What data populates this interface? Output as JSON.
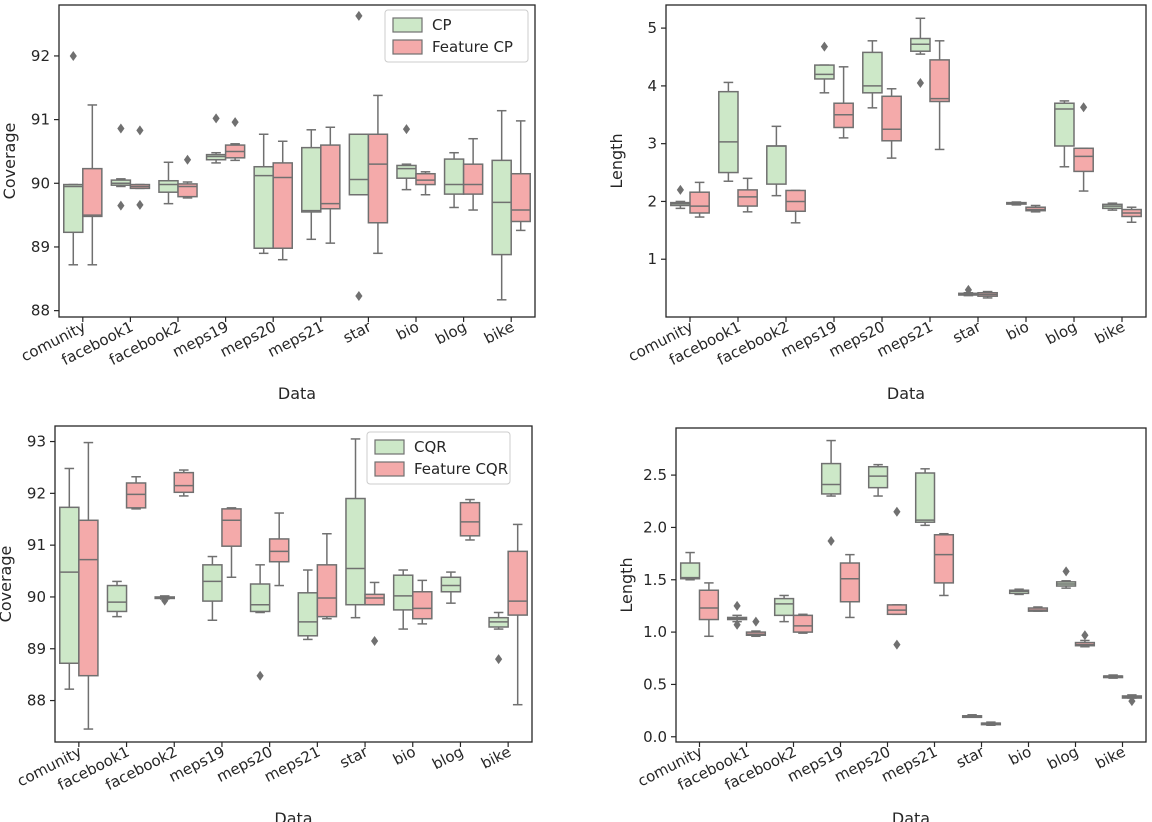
{
  "colors": {
    "green": "#cde8c8",
    "pink": "#f4aaaa",
    "line": "#707070",
    "axis": "#262626"
  },
  "chart_data": [
    {
      "type": "box",
      "xlabel": "Data",
      "ylabel": "Coverage",
      "ylim": [
        87.9,
        92.8
      ],
      "yticks": [
        88,
        89,
        90,
        91,
        92
      ],
      "categories": [
        "comunity",
        "facebook1",
        "facebook2",
        "meps19",
        "meps20",
        "meps21",
        "star",
        "bio",
        "blog",
        "bike"
      ],
      "legend": [
        "CP",
        "Feature CP"
      ],
      "series": [
        {
          "name": "CP",
          "color": "#cde8c8",
          "boxes": [
            {
              "lw": 88.72,
              "q1": 89.23,
              "med": 89.95,
              "q3": 89.98,
              "uw": 89.98,
              "out": [
                92.0
              ]
            },
            {
              "lw": 89.95,
              "q1": 89.97,
              "med": 90.0,
              "q3": 90.05,
              "uw": 90.07,
              "out": [
                90.86,
                89.65
              ]
            },
            {
              "lw": 89.68,
              "q1": 89.86,
              "med": 89.98,
              "q3": 90.04,
              "uw": 90.33,
              "out": []
            },
            {
              "lw": 90.32,
              "q1": 90.37,
              "med": 90.42,
              "q3": 90.45,
              "uw": 90.48,
              "out": [
                91.02
              ]
            },
            {
              "lw": 88.9,
              "q1": 88.98,
              "med": 90.12,
              "q3": 90.26,
              "uw": 90.77,
              "out": []
            },
            {
              "lw": 89.12,
              "q1": 89.55,
              "med": 89.57,
              "q3": 90.56,
              "uw": 90.84,
              "out": []
            },
            {
              "lw": 89.82,
              "q1": 89.82,
              "med": 90.06,
              "q3": 90.77,
              "uw": 90.77,
              "out": [
                92.63,
                88.23
              ]
            },
            {
              "lw": 89.9,
              "q1": 90.08,
              "med": 90.23,
              "q3": 90.28,
              "uw": 90.3,
              "out": [
                90.85
              ]
            },
            {
              "lw": 89.62,
              "q1": 89.83,
              "med": 89.98,
              "q3": 90.38,
              "uw": 90.48,
              "out": []
            },
            {
              "lw": 88.17,
              "q1": 88.88,
              "med": 89.7,
              "q3": 90.36,
              "uw": 91.14,
              "out": []
            }
          ]
        },
        {
          "name": "Feature CP",
          "color": "#f4aaaa",
          "boxes": [
            {
              "lw": 88.72,
              "q1": 89.48,
              "med": 89.5,
              "q3": 90.23,
              "uw": 91.23,
              "out": []
            },
            {
              "lw": 89.92,
              "q1": 89.92,
              "med": 89.95,
              "q3": 89.98,
              "uw": 89.98,
              "out": [
                90.83,
                89.66
              ]
            },
            {
              "lw": 89.77,
              "q1": 89.79,
              "med": 89.95,
              "q3": 89.99,
              "uw": 90.02,
              "out": [
                90.37
              ]
            },
            {
              "lw": 90.36,
              "q1": 90.4,
              "med": 90.5,
              "q3": 90.6,
              "uw": 90.62,
              "out": [
                90.96
              ]
            },
            {
              "lw": 88.8,
              "q1": 88.98,
              "med": 90.09,
              "q3": 90.32,
              "uw": 90.66,
              "out": []
            },
            {
              "lw": 89.06,
              "q1": 89.6,
              "med": 89.68,
              "q3": 90.6,
              "uw": 90.88,
              "out": []
            },
            {
              "lw": 88.9,
              "q1": 89.38,
              "med": 90.3,
              "q3": 90.77,
              "uw": 91.38,
              "out": []
            },
            {
              "lw": 89.82,
              "q1": 89.98,
              "med": 90.05,
              "q3": 90.15,
              "uw": 90.18,
              "out": []
            },
            {
              "lw": 89.58,
              "q1": 89.83,
              "med": 89.98,
              "q3": 90.3,
              "uw": 90.7,
              "out": []
            },
            {
              "lw": 89.26,
              "q1": 89.4,
              "med": 89.58,
              "q3": 90.15,
              "uw": 90.98,
              "out": []
            }
          ]
        }
      ]
    },
    {
      "type": "box",
      "xlabel": "Data",
      "ylabel": "Length",
      "ylim": [
        0.0,
        5.4
      ],
      "yticks": [
        1,
        2,
        3,
        4,
        5
      ],
      "categories": [
        "comunity",
        "facebook1",
        "facebook2",
        "meps19",
        "meps20",
        "meps21",
        "star",
        "bio",
        "blog",
        "bike"
      ],
      "legend": [],
      "series": [
        {
          "name": "CP",
          "color": "#cde8c8",
          "boxes": [
            {
              "lw": 1.88,
              "q1": 1.93,
              "med": 1.96,
              "q3": 1.98,
              "uw": 2.0,
              "out": [
                2.2
              ]
            },
            {
              "lw": 2.35,
              "q1": 2.5,
              "med": 3.03,
              "q3": 3.9,
              "uw": 4.06,
              "out": []
            },
            {
              "lw": 2.1,
              "q1": 2.3,
              "med": 2.96,
              "q3": 2.96,
              "uw": 3.3,
              "out": []
            },
            {
              "lw": 3.88,
              "q1": 4.12,
              "med": 4.2,
              "q3": 4.36,
              "uw": 4.36,
              "out": [
                4.68
              ]
            },
            {
              "lw": 3.62,
              "q1": 3.88,
              "med": 4.0,
              "q3": 4.58,
              "uw": 4.78,
              "out": []
            },
            {
              "lw": 4.55,
              "q1": 4.6,
              "med": 4.72,
              "q3": 4.82,
              "uw": 5.17,
              "out": [
                4.05
              ]
            },
            {
              "lw": 0.37,
              "q1": 0.38,
              "med": 0.4,
              "q3": 0.41,
              "uw": 0.42,
              "out": [
                0.47
              ]
            },
            {
              "lw": 1.94,
              "q1": 1.96,
              "med": 1.97,
              "q3": 1.98,
              "uw": 1.99,
              "out": []
            },
            {
              "lw": 2.6,
              "q1": 2.96,
              "med": 3.6,
              "q3": 3.7,
              "uw": 3.74,
              "out": []
            },
            {
              "lw": 1.85,
              "q1": 1.88,
              "med": 1.92,
              "q3": 1.95,
              "uw": 1.97,
              "out": []
            }
          ]
        },
        {
          "name": "Feature CP",
          "color": "#f4aaaa",
          "boxes": [
            {
              "lw": 1.73,
              "q1": 1.8,
              "med": 1.92,
              "q3": 2.16,
              "uw": 2.33,
              "out": []
            },
            {
              "lw": 1.82,
              "q1": 1.92,
              "med": 2.08,
              "q3": 2.2,
              "uw": 2.4,
              "out": []
            },
            {
              "lw": 1.63,
              "q1": 1.83,
              "med": 2.0,
              "q3": 2.19,
              "uw": 2.19,
              "out": []
            },
            {
              "lw": 3.1,
              "q1": 3.28,
              "med": 3.5,
              "q3": 3.7,
              "uw": 4.33,
              "out": []
            },
            {
              "lw": 2.75,
              "q1": 3.05,
              "med": 3.25,
              "q3": 3.82,
              "uw": 3.95,
              "out": []
            },
            {
              "lw": 2.9,
              "q1": 3.73,
              "med": 3.78,
              "q3": 4.45,
              "uw": 4.78,
              "out": []
            },
            {
              "lw": 0.33,
              "q1": 0.36,
              "med": 0.39,
              "q3": 0.42,
              "uw": 0.44,
              "out": []
            },
            {
              "lw": 1.82,
              "q1": 1.84,
              "med": 1.86,
              "q3": 1.9,
              "uw": 1.93,
              "out": []
            },
            {
              "lw": 2.18,
              "q1": 2.52,
              "med": 2.78,
              "q3": 2.92,
              "uw": 2.92,
              "out": [
                3.63
              ]
            },
            {
              "lw": 1.64,
              "q1": 1.74,
              "med": 1.8,
              "q3": 1.86,
              "uw": 1.9,
              "out": []
            }
          ]
        }
      ]
    },
    {
      "type": "box",
      "xlabel": "Data",
      "ylabel": "Coverage",
      "ylim": [
        87.2,
        93.3
      ],
      "yticks": [
        88,
        89,
        90,
        91,
        92,
        93
      ],
      "categories": [
        "comunity",
        "facebook1",
        "facebook2",
        "meps19",
        "meps20",
        "meps21",
        "star",
        "bio",
        "blog",
        "bike"
      ],
      "legend": [
        "CQR",
        "Feature CQR"
      ],
      "series": [
        {
          "name": "CQR",
          "color": "#cde8c8",
          "boxes": [
            {
              "lw": 88.22,
              "q1": 88.72,
              "med": 90.48,
              "q3": 91.73,
              "uw": 92.48,
              "out": []
            },
            {
              "lw": 89.62,
              "q1": 89.72,
              "med": 89.9,
              "q3": 90.22,
              "uw": 90.3,
              "out": []
            },
            {
              "lw": 89.96,
              "q1": 89.98,
              "med": 89.99,
              "q3": 90.0,
              "uw": 90.02,
              "out": [
                89.93
              ]
            },
            {
              "lw": 89.55,
              "q1": 89.92,
              "med": 90.3,
              "q3": 90.62,
              "uw": 90.78,
              "out": []
            },
            {
              "lw": 89.7,
              "q1": 89.72,
              "med": 89.85,
              "q3": 90.25,
              "uw": 90.62,
              "out": [
                88.48
              ]
            },
            {
              "lw": 89.18,
              "q1": 89.25,
              "med": 89.52,
              "q3": 90.08,
              "uw": 90.52,
              "out": []
            },
            {
              "lw": 89.6,
              "q1": 89.85,
              "med": 90.55,
              "q3": 91.9,
              "uw": 93.05,
              "out": []
            },
            {
              "lw": 89.38,
              "q1": 89.75,
              "med": 90.02,
              "q3": 90.42,
              "uw": 90.52,
              "out": []
            },
            {
              "lw": 89.88,
              "q1": 90.1,
              "med": 90.22,
              "q3": 90.38,
              "uw": 90.48,
              "out": []
            },
            {
              "lw": 89.38,
              "q1": 89.42,
              "med": 89.52,
              "q3": 89.6,
              "uw": 89.7,
              "out": [
                88.8
              ]
            }
          ]
        },
        {
          "name": "Feature CQR",
          "color": "#f4aaaa",
          "boxes": [
            {
              "lw": 87.45,
              "q1": 88.48,
              "med": 90.72,
              "q3": 91.48,
              "uw": 92.98,
              "out": []
            },
            {
              "lw": 91.7,
              "q1": 91.72,
              "med": 91.98,
              "q3": 92.2,
              "uw": 92.32,
              "out": []
            },
            {
              "lw": 91.95,
              "q1": 92.02,
              "med": 92.15,
              "q3": 92.4,
              "uw": 92.45,
              "out": []
            },
            {
              "lw": 90.38,
              "q1": 90.98,
              "med": 91.48,
              "q3": 91.7,
              "uw": 91.72,
              "out": []
            },
            {
              "lw": 90.22,
              "q1": 90.68,
              "med": 90.88,
              "q3": 91.12,
              "uw": 91.62,
              "out": []
            },
            {
              "lw": 89.58,
              "q1": 89.62,
              "med": 89.98,
              "q3": 90.62,
              "uw": 91.22,
              "out": []
            },
            {
              "lw": 89.85,
              "q1": 89.85,
              "med": 89.98,
              "q3": 90.05,
              "uw": 90.28,
              "out": [
                89.15
              ]
            },
            {
              "lw": 89.48,
              "q1": 89.58,
              "med": 89.78,
              "q3": 90.1,
              "uw": 90.32,
              "out": []
            },
            {
              "lw": 91.1,
              "q1": 91.18,
              "med": 91.45,
              "q3": 91.82,
              "uw": 91.88,
              "out": []
            },
            {
              "lw": 87.92,
              "q1": 89.65,
              "med": 89.92,
              "q3": 90.88,
              "uw": 91.4,
              "out": []
            }
          ]
        }
      ]
    },
    {
      "type": "box",
      "xlabel": "Data",
      "ylabel": "Length",
      "ylim": [
        -0.05,
        2.95
      ],
      "yticks": [
        0.0,
        0.5,
        1.0,
        1.5,
        2.0,
        2.5
      ],
      "ytick_labels": [
        "0.0",
        "0.5",
        "1.0",
        "1.5",
        "2.0",
        "2.5"
      ],
      "categories": [
        "comunity",
        "facebook1",
        "facebook2",
        "meps19",
        "meps20",
        "meps21",
        "star",
        "bio",
        "blog",
        "bike"
      ],
      "legend": [],
      "series": [
        {
          "name": "CQR",
          "color": "#cde8c8",
          "boxes": [
            {
              "lw": 1.5,
              "q1": 1.51,
              "med": 1.52,
              "q3": 1.66,
              "uw": 1.76,
              "out": []
            },
            {
              "lw": 1.1,
              "q1": 1.12,
              "med": 1.13,
              "q3": 1.14,
              "uw": 1.16,
              "out": [
                1.25,
                1.07
              ]
            },
            {
              "lw": 1.1,
              "q1": 1.16,
              "med": 1.27,
              "q3": 1.32,
              "uw": 1.35,
              "out": []
            },
            {
              "lw": 2.3,
              "q1": 2.32,
              "med": 2.41,
              "q3": 2.61,
              "uw": 2.83,
              "out": [
                1.87
              ]
            },
            {
              "lw": 2.3,
              "q1": 2.38,
              "med": 2.49,
              "q3": 2.58,
              "uw": 2.6,
              "out": []
            },
            {
              "lw": 2.02,
              "q1": 2.05,
              "med": 2.07,
              "q3": 2.52,
              "uw": 2.56,
              "out": []
            },
            {
              "lw": 0.19,
              "q1": 0.19,
              "med": 0.2,
              "q3": 0.2,
              "uw": 0.21,
              "out": []
            },
            {
              "lw": 1.36,
              "q1": 1.37,
              "med": 1.39,
              "q3": 1.4,
              "uw": 1.41,
              "out": []
            },
            {
              "lw": 1.42,
              "q1": 1.44,
              "med": 1.46,
              "q3": 1.48,
              "uw": 1.49,
              "out": [
                1.58
              ]
            },
            {
              "lw": 0.56,
              "q1": 0.57,
              "med": 0.58,
              "q3": 0.58,
              "uw": 0.59,
              "out": []
            }
          ]
        },
        {
          "name": "Feature CQR",
          "color": "#f4aaaa",
          "boxes": [
            {
              "lw": 0.96,
              "q1": 1.12,
              "med": 1.23,
              "q3": 1.4,
              "uw": 1.47,
              "out": []
            },
            {
              "lw": 0.96,
              "q1": 0.97,
              "med": 0.98,
              "q3": 1.0,
              "uw": 1.01,
              "out": [
                1.1
              ]
            },
            {
              "lw": 0.99,
              "q1": 1.0,
              "med": 1.06,
              "q3": 1.16,
              "uw": 1.17,
              "out": []
            },
            {
              "lw": 1.14,
              "q1": 1.29,
              "med": 1.51,
              "q3": 1.66,
              "uw": 1.74,
              "out": []
            },
            {
              "lw": 1.17,
              "q1": 1.17,
              "med": 1.21,
              "q3": 1.26,
              "uw": 1.26,
              "out": [
                2.15,
                0.88
              ]
            },
            {
              "lw": 1.35,
              "q1": 1.47,
              "med": 1.74,
              "q3": 1.93,
              "uw": 1.94,
              "out": []
            },
            {
              "lw": 0.11,
              "q1": 0.12,
              "med": 0.13,
              "q3": 0.13,
              "uw": 0.14,
              "out": []
            },
            {
              "lw": 1.2,
              "q1": 1.2,
              "med": 1.21,
              "q3": 1.23,
              "uw": 1.24,
              "out": []
            },
            {
              "lw": 0.86,
              "q1": 0.87,
              "med": 0.88,
              "q3": 0.9,
              "uw": 0.92,
              "out": [
                0.97
              ]
            },
            {
              "lw": 0.37,
              "q1": 0.37,
              "med": 0.38,
              "q3": 0.39,
              "uw": 0.4,
              "out": [
                0.34
              ]
            }
          ]
        }
      ]
    }
  ]
}
